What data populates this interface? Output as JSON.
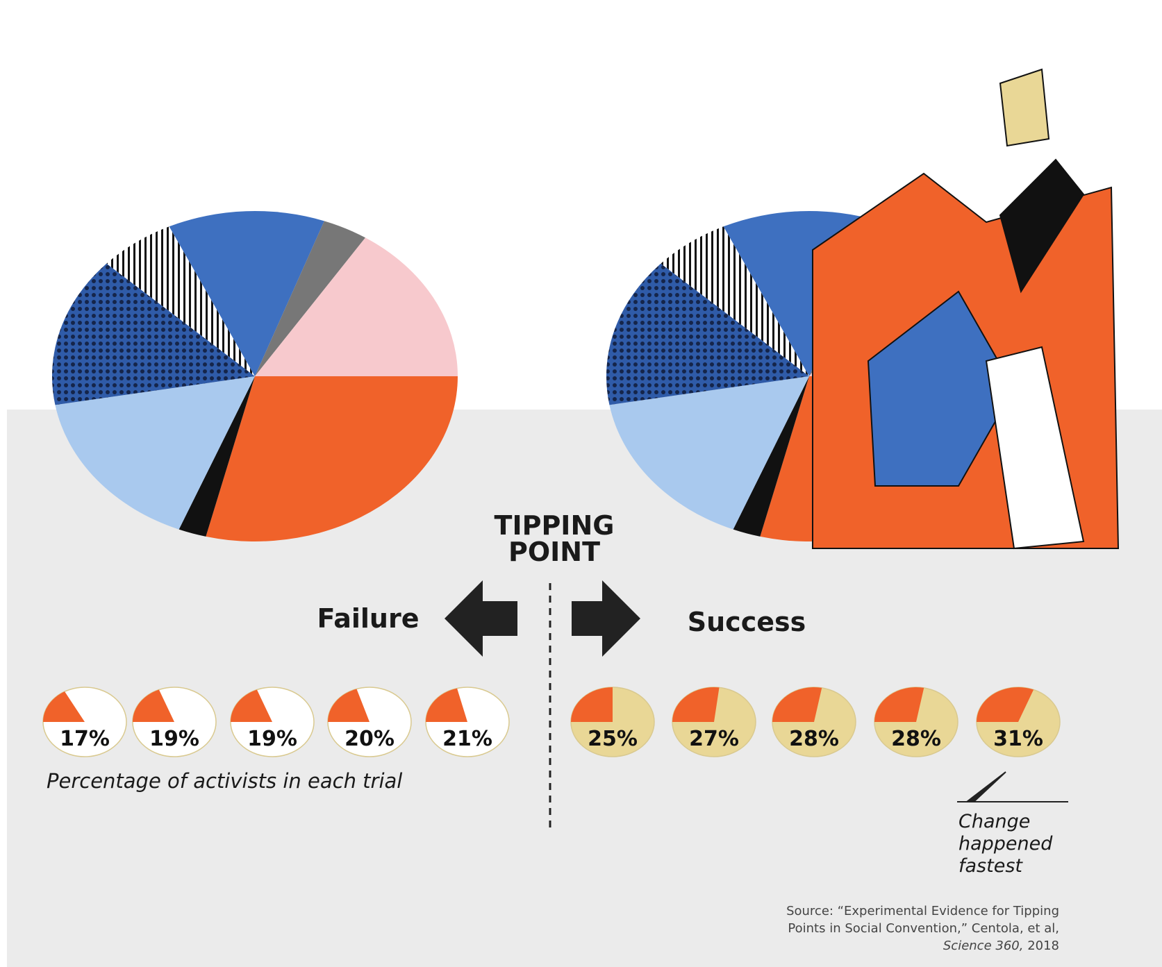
{
  "title": "TIPPING POINT",
  "chart_data": [
    {
      "type": "pie",
      "title": "Failure",
      "values": [
        17,
        19,
        19,
        20,
        21
      ],
      "value_labels": [
        "17%",
        "19%",
        "19%",
        "20%",
        "21%"
      ],
      "color": "#f0622a",
      "background": "#ffffff",
      "caption": "Percentage of activists in each trial"
    },
    {
      "type": "pie",
      "title": "Success",
      "values": [
        25,
        27,
        28,
        28,
        31
      ],
      "value_labels": [
        "25%",
        "27%",
        "28%",
        "28%",
        "31%"
      ],
      "color": "#f0622a",
      "background": "#e9d796",
      "annotation": "Change happened fastest"
    }
  ],
  "source": {
    "text": "Source: “Experimental Evidence for Tipping Points in Social Convention,” Centola, et al,",
    "journal": "Science 360,",
    "year": "2018"
  }
}
